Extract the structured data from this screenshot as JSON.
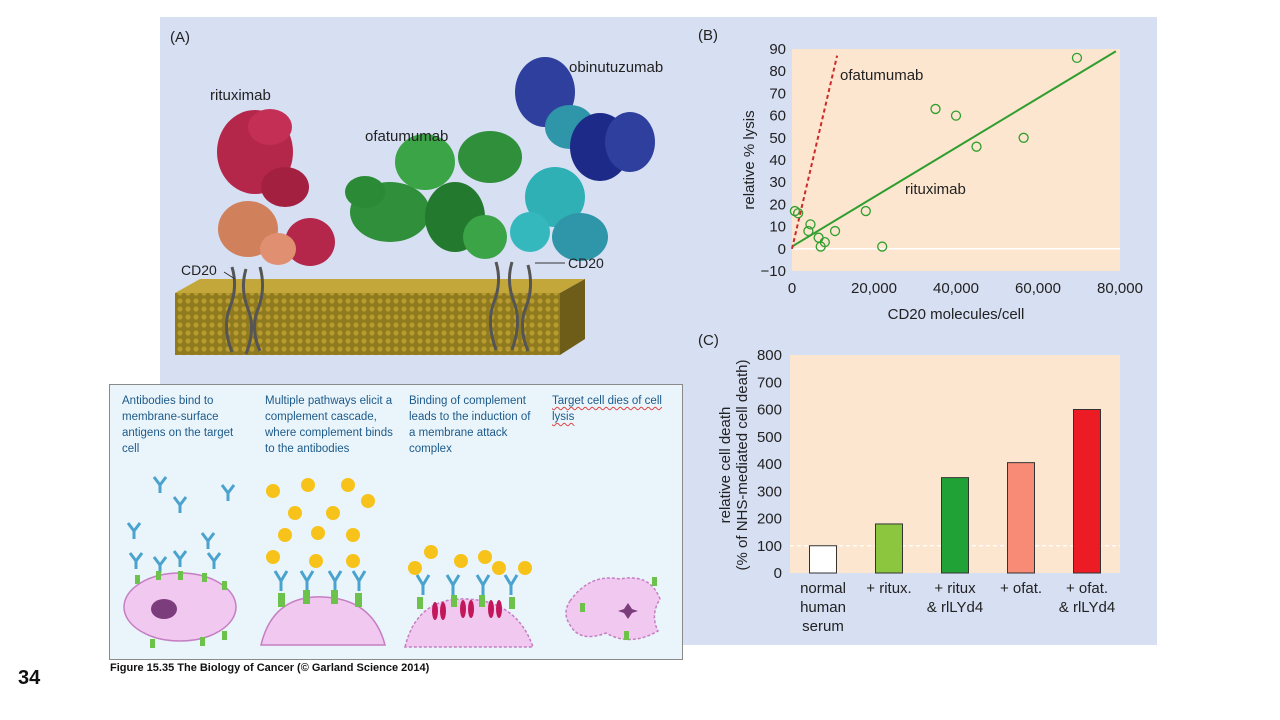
{
  "panelA": {
    "label": "(A)",
    "names": {
      "rituximab": "rituximab",
      "ofatumumab": "ofatumumab",
      "obinutuzumab": "obinutuzumab",
      "cd20_left": "CD20",
      "cd20_right": "CD20"
    }
  },
  "strip": {
    "cells": [
      {
        "text": "Antibodies bind to membrane-surface antigens on the target cell"
      },
      {
        "text": "Multiple pathways elicit a complement cascade, where complement binds to the antibodies"
      },
      {
        "text": "Binding of complement leads to the induction of a membrane attack complex"
      },
      {
        "text": "Target cell dies of cell lysis"
      }
    ]
  },
  "caption": "Figure 15.35 The Biology of Cancer (© Garland Science 2014)",
  "page_number": "34",
  "colors": {
    "plot_bg": "#fde6cf",
    "rituximab_line": "#2f9e2f",
    "ofatumumab_line": "#cc2a2a"
  },
  "chart_data": [
    {
      "type": "scatter",
      "panel_label": "(B)",
      "xlabel": "CD20 molecules/cell",
      "ylabel": "relative % lysis",
      "xlim": [
        0,
        80000
      ],
      "ylim": [
        -10,
        90
      ],
      "x_ticks": [
        0,
        20000,
        40000,
        60000,
        80000
      ],
      "x_tick_labels": [
        "0",
        "20,000",
        "40,000",
        "60,000",
        "80,000"
      ],
      "y_ticks": [
        -10,
        0,
        10,
        20,
        30,
        40,
        50,
        60,
        70,
        80,
        90
      ],
      "y_tick_labels": [
        "−10",
        "0",
        "10",
        "20",
        "30",
        "40",
        "50",
        "60",
        "70",
        "80",
        "90"
      ],
      "points": [
        {
          "x": 700,
          "y": 17
        },
        {
          "x": 1500,
          "y": 16
        },
        {
          "x": 4500,
          "y": 11
        },
        {
          "x": 4000,
          "y": 8
        },
        {
          "x": 6500,
          "y": 5
        },
        {
          "x": 7000,
          "y": 1
        },
        {
          "x": 8000,
          "y": 3
        },
        {
          "x": 10500,
          "y": 8
        },
        {
          "x": 18000,
          "y": 17
        },
        {
          "x": 22000,
          "y": 1
        },
        {
          "x": 35000,
          "y": 63
        },
        {
          "x": 40000,
          "y": 60
        },
        {
          "x": 45000,
          "y": 46
        },
        {
          "x": 56500,
          "y": 50
        },
        {
          "x": 69500,
          "y": 86
        }
      ],
      "series": [
        {
          "name": "rituximab",
          "style": "solid",
          "x": [
            0,
            79000
          ],
          "y": [
            1,
            89
          ]
        },
        {
          "name": "ofatumumab",
          "style": "dashed",
          "x": [
            0,
            11000
          ],
          "y": [
            0,
            87
          ]
        }
      ]
    },
    {
      "type": "bar",
      "panel_label": "(C)",
      "ylabel": "relative cell death",
      "ylabel2": "(% of NHS-mediated cell death)",
      "ylim": [
        0,
        800
      ],
      "y_ticks": [
        0,
        100,
        200,
        300,
        400,
        500,
        600,
        700,
        800
      ],
      "categories": [
        [
          "normal",
          "human",
          "serum"
        ],
        [
          "+ ritux."
        ],
        [
          "+ ritux",
          "& rlLYd4"
        ],
        [
          "+ ofat."
        ],
        [
          "+ ofat.",
          "& rlLYd4"
        ]
      ],
      "values": [
        100,
        180,
        350,
        405,
        600
      ],
      "bar_colors": [
        "#ffffff",
        "#8cc63f",
        "#21a236",
        "#f78b75",
        "#ed1c24"
      ]
    }
  ]
}
